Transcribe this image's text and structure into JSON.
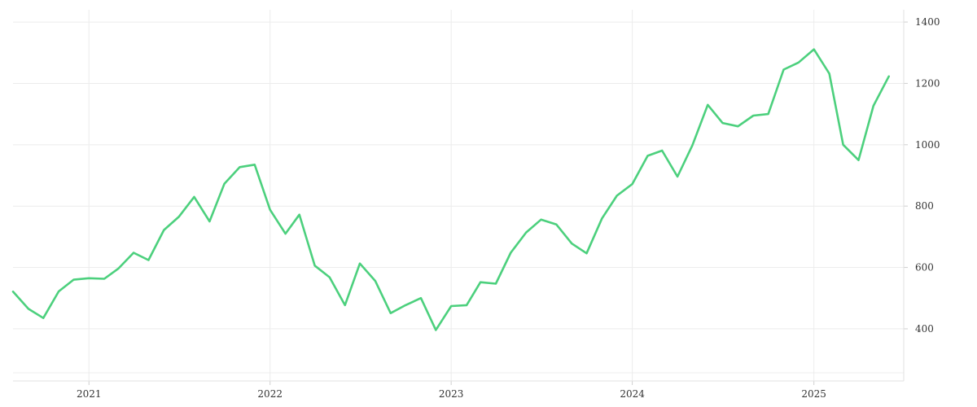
{
  "chart_data": {
    "type": "line",
    "title": "",
    "xlabel": "",
    "ylabel": "",
    "x_axis": {
      "start": "2020-08-01",
      "end": "2025-07-01",
      "tick_labels": [
        "2021",
        "2022",
        "2023",
        "2024",
        "2025"
      ],
      "tick_dates": [
        "2021-01-01",
        "2022-01-01",
        "2023-01-01",
        "2024-01-01",
        "2025-01-01"
      ]
    },
    "y_axis": {
      "position": "right",
      "min": 230,
      "max": 1440,
      "ticks": [
        400,
        600,
        800,
        1000,
        1200,
        1400
      ],
      "tick_labels": [
        "400",
        "600",
        "800",
        "1000",
        "1200",
        "1400"
      ]
    },
    "grid": true,
    "legend": "none",
    "line_color": "#4cd07d",
    "series": [
      {
        "x": [
          "2020-08-01",
          "2020-09-01",
          "2020-10-01",
          "2020-11-01",
          "2020-12-01",
          "2021-01-01",
          "2021-02-01",
          "2021-03-01",
          "2021-04-01",
          "2021-05-01",
          "2021-06-01",
          "2021-07-01",
          "2021-08-01",
          "2021-09-01",
          "2021-10-01",
          "2021-11-01",
          "2021-12-01",
          "2022-01-01",
          "2022-02-01",
          "2022-03-01",
          "2022-04-01",
          "2022-05-01",
          "2022-06-01",
          "2022-07-01",
          "2022-08-01",
          "2022-09-01",
          "2022-10-01",
          "2022-11-01",
          "2022-12-01",
          "2023-01-01",
          "2023-02-01",
          "2023-03-01",
          "2023-04-01",
          "2023-05-01",
          "2023-06-01",
          "2023-07-01",
          "2023-08-01",
          "2023-09-01",
          "2023-10-01",
          "2023-11-01",
          "2023-12-01",
          "2024-01-01",
          "2024-02-01",
          "2024-03-01",
          "2024-04-01",
          "2024-05-01",
          "2024-06-01",
          "2024-07-01",
          "2024-08-01",
          "2024-09-01",
          "2024-10-01",
          "2024-11-01",
          "2024-12-01",
          "2025-01-01",
          "2025-02-01",
          "2025-03-01",
          "2025-04-01",
          "2025-05-01",
          "2025-06-01"
        ],
        "values": [
          521,
          465,
          435,
          522,
          560,
          565,
          563,
          596,
          648,
          624,
          722,
          765,
          830,
          750,
          873,
          927,
          935,
          788,
          710,
          772,
          606,
          568,
          477,
          613,
          556,
          451,
          477,
          500,
          396,
          474,
          477,
          552,
          547,
          648,
          714,
          756,
          740,
          678,
          646,
          760,
          834,
          872,
          964,
          981,
          896,
          998,
          1130,
          1071,
          1060,
          1095,
          1100,
          1245,
          1268,
          1311,
          1232,
          1000,
          950,
          1127,
          1223
        ]
      }
    ]
  }
}
